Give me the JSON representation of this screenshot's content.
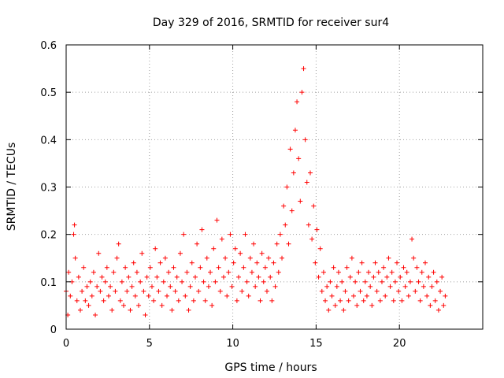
{
  "chart_data": {
    "type": "scatter",
    "title": "Day 329 of 2016, SRMTID for receiver sur4",
    "xlabel": "GPS time / hours",
    "ylabel": "SRMTID / TECUs",
    "xlim": [
      0,
      25
    ],
    "ylim": [
      0,
      0.6
    ],
    "xticks": [
      0,
      5,
      10,
      15,
      20
    ],
    "yticks": [
      0,
      0.1,
      0.2,
      0.3,
      0.4,
      0.5,
      0.6
    ],
    "xtick_labels": [
      "0",
      "5",
      "10",
      "15",
      "20"
    ],
    "ytick_labels": [
      "0",
      "0.1",
      "0.2",
      "0.3",
      "0.4",
      "0.5",
      "0.6"
    ],
    "grid": true,
    "marker": "+",
    "color": "#ff0000",
    "series": [
      {
        "name": "SRMTID",
        "points": [
          [
            0.0,
            0.08
          ],
          [
            0.1,
            0.03
          ],
          [
            0.15,
            0.12
          ],
          [
            0.25,
            0.07
          ],
          [
            0.35,
            0.1
          ],
          [
            0.45,
            0.2
          ],
          [
            0.5,
            0.22
          ],
          [
            0.55,
            0.15
          ],
          [
            0.65,
            0.06
          ],
          [
            0.75,
            0.11
          ],
          [
            0.85,
            0.04
          ],
          [
            0.95,
            0.08
          ],
          [
            1.05,
            0.13
          ],
          [
            1.15,
            0.06
          ],
          [
            1.25,
            0.09
          ],
          [
            1.35,
            0.05
          ],
          [
            1.45,
            0.1
          ],
          [
            1.55,
            0.07
          ],
          [
            1.65,
            0.12
          ],
          [
            1.75,
            0.03
          ],
          [
            1.85,
            0.09
          ],
          [
            1.95,
            0.16
          ],
          [
            2.05,
            0.08
          ],
          [
            2.15,
            0.11
          ],
          [
            2.25,
            0.06
          ],
          [
            2.35,
            0.1
          ],
          [
            2.45,
            0.13
          ],
          [
            2.55,
            0.07
          ],
          [
            2.65,
            0.09
          ],
          [
            2.75,
            0.04
          ],
          [
            2.85,
            0.12
          ],
          [
            2.95,
            0.08
          ],
          [
            3.05,
            0.15
          ],
          [
            3.15,
            0.18
          ],
          [
            3.25,
            0.06
          ],
          [
            3.35,
            0.1
          ],
          [
            3.45,
            0.05
          ],
          [
            3.55,
            0.13
          ],
          [
            3.65,
            0.08
          ],
          [
            3.75,
            0.11
          ],
          [
            3.85,
            0.04
          ],
          [
            3.95,
            0.09
          ],
          [
            4.05,
            0.14
          ],
          [
            4.15,
            0.07
          ],
          [
            4.25,
            0.12
          ],
          [
            4.35,
            0.05
          ],
          [
            4.45,
            0.1
          ],
          [
            4.55,
            0.16
          ],
          [
            4.65,
            0.08
          ],
          [
            4.75,
            0.03
          ],
          [
            4.85,
            0.11
          ],
          [
            4.95,
            0.07
          ],
          [
            5.05,
            0.13
          ],
          [
            5.15,
            0.09
          ],
          [
            5.25,
            0.06
          ],
          [
            5.35,
            0.17
          ],
          [
            5.45,
            0.11
          ],
          [
            5.55,
            0.08
          ],
          [
            5.65,
            0.14
          ],
          [
            5.75,
            0.05
          ],
          [
            5.85,
            0.1
          ],
          [
            5.95,
            0.15
          ],
          [
            6.05,
            0.07
          ],
          [
            6.15,
            0.12
          ],
          [
            6.25,
            0.09
          ],
          [
            6.35,
            0.04
          ],
          [
            6.45,
            0.13
          ],
          [
            6.55,
            0.08
          ],
          [
            6.65,
            0.11
          ],
          [
            6.75,
            0.06
          ],
          [
            6.85,
            0.16
          ],
          [
            6.95,
            0.1
          ],
          [
            7.05,
            0.2
          ],
          [
            7.15,
            0.07
          ],
          [
            7.25,
            0.12
          ],
          [
            7.35,
            0.04
          ],
          [
            7.45,
            0.09
          ],
          [
            7.55,
            0.14
          ],
          [
            7.65,
            0.06
          ],
          [
            7.75,
            0.11
          ],
          [
            7.85,
            0.18
          ],
          [
            7.95,
            0.08
          ],
          [
            8.05,
            0.13
          ],
          [
            8.15,
            0.21
          ],
          [
            8.25,
            0.1
          ],
          [
            8.35,
            0.06
          ],
          [
            8.45,
            0.15
          ],
          [
            8.55,
            0.09
          ],
          [
            8.65,
            0.12
          ],
          [
            8.75,
            0.05
          ],
          [
            8.85,
            0.17
          ],
          [
            8.95,
            0.1
          ],
          [
            9.05,
            0.23
          ],
          [
            9.15,
            0.13
          ],
          [
            9.25,
            0.08
          ],
          [
            9.35,
            0.19
          ],
          [
            9.45,
            0.11
          ],
          [
            9.55,
            0.15
          ],
          [
            9.65,
            0.07
          ],
          [
            9.75,
            0.12
          ],
          [
            9.85,
            0.2
          ],
          [
            9.95,
            0.09
          ],
          [
            10.05,
            0.14
          ],
          [
            10.15,
            0.17
          ],
          [
            10.25,
            0.06
          ],
          [
            10.35,
            0.11
          ],
          [
            10.45,
            0.16
          ],
          [
            10.55,
            0.08
          ],
          [
            10.65,
            0.13
          ],
          [
            10.75,
            0.2
          ],
          [
            10.85,
            0.1
          ],
          [
            10.95,
            0.07
          ],
          [
            11.05,
            0.15
          ],
          [
            11.15,
            0.12
          ],
          [
            11.25,
            0.18
          ],
          [
            11.35,
            0.09
          ],
          [
            11.45,
            0.14
          ],
          [
            11.55,
            0.11
          ],
          [
            11.65,
            0.06
          ],
          [
            11.75,
            0.16
          ],
          [
            11.85,
            0.1
          ],
          [
            11.95,
            0.13
          ],
          [
            12.05,
            0.08
          ],
          [
            12.15,
            0.15
          ],
          [
            12.25,
            0.11
          ],
          [
            12.35,
            0.06
          ],
          [
            12.45,
            0.14
          ],
          [
            12.55,
            0.09
          ],
          [
            12.65,
            0.18
          ],
          [
            12.75,
            0.12
          ],
          [
            12.85,
            0.2
          ],
          [
            12.95,
            0.15
          ],
          [
            13.05,
            0.26
          ],
          [
            13.15,
            0.22
          ],
          [
            13.25,
            0.3
          ],
          [
            13.35,
            0.18
          ],
          [
            13.45,
            0.38
          ],
          [
            13.55,
            0.25
          ],
          [
            13.65,
            0.33
          ],
          [
            13.75,
            0.42
          ],
          [
            13.85,
            0.48
          ],
          [
            13.95,
            0.36
          ],
          [
            14.05,
            0.27
          ],
          [
            14.15,
            0.5
          ],
          [
            14.25,
            0.55
          ],
          [
            14.35,
            0.4
          ],
          [
            14.45,
            0.31
          ],
          [
            14.55,
            0.22
          ],
          [
            14.65,
            0.33
          ],
          [
            14.75,
            0.19
          ],
          [
            14.85,
            0.26
          ],
          [
            14.95,
            0.14
          ],
          [
            15.05,
            0.21
          ],
          [
            15.15,
            0.11
          ],
          [
            15.25,
            0.17
          ],
          [
            15.35,
            0.08
          ],
          [
            15.45,
            0.12
          ],
          [
            15.55,
            0.06
          ],
          [
            15.65,
            0.09
          ],
          [
            15.75,
            0.04
          ],
          [
            15.85,
            0.1
          ],
          [
            15.95,
            0.07
          ],
          [
            16.05,
            0.13
          ],
          [
            16.15,
            0.05
          ],
          [
            16.25,
            0.09
          ],
          [
            16.35,
            0.12
          ],
          [
            16.45,
            0.06
          ],
          [
            16.55,
            0.1
          ],
          [
            16.65,
            0.04
          ],
          [
            16.75,
            0.08
          ],
          [
            16.85,
            0.13
          ],
          [
            16.95,
            0.06
          ],
          [
            17.05,
            0.11
          ],
          [
            17.15,
            0.15
          ],
          [
            17.25,
            0.07
          ],
          [
            17.35,
            0.1
          ],
          [
            17.45,
            0.05
          ],
          [
            17.55,
            0.12
          ],
          [
            17.65,
            0.08
          ],
          [
            17.75,
            0.14
          ],
          [
            17.85,
            0.06
          ],
          [
            17.95,
            0.1
          ],
          [
            18.05,
            0.07
          ],
          [
            18.15,
            0.12
          ],
          [
            18.25,
            0.09
          ],
          [
            18.35,
            0.05
          ],
          [
            18.45,
            0.11
          ],
          [
            18.55,
            0.14
          ],
          [
            18.65,
            0.08
          ],
          [
            18.75,
            0.12
          ],
          [
            18.85,
            0.06
          ],
          [
            18.95,
            0.1
          ],
          [
            19.05,
            0.13
          ],
          [
            19.15,
            0.07
          ],
          [
            19.25,
            0.11
          ],
          [
            19.35,
            0.15
          ],
          [
            19.45,
            0.09
          ],
          [
            19.55,
            0.12
          ],
          [
            19.65,
            0.06
          ],
          [
            19.75,
            0.1
          ],
          [
            19.85,
            0.14
          ],
          [
            19.95,
            0.08
          ],
          [
            20.05,
            0.11
          ],
          [
            20.15,
            0.06
          ],
          [
            20.25,
            0.13
          ],
          [
            20.35,
            0.09
          ],
          [
            20.45,
            0.12
          ],
          [
            20.55,
            0.07
          ],
          [
            20.65,
            0.1
          ],
          [
            20.75,
            0.19
          ],
          [
            20.85,
            0.15
          ],
          [
            20.95,
            0.08
          ],
          [
            21.05,
            0.13
          ],
          [
            21.15,
            0.1
          ],
          [
            21.25,
            0.06
          ],
          [
            21.35,
            0.12
          ],
          [
            21.45,
            0.09
          ],
          [
            21.55,
            0.14
          ],
          [
            21.65,
            0.07
          ],
          [
            21.75,
            0.11
          ],
          [
            21.85,
            0.05
          ],
          [
            21.95,
            0.09
          ],
          [
            22.05,
            0.12
          ],
          [
            22.15,
            0.06
          ],
          [
            22.25,
            0.1
          ],
          [
            22.35,
            0.04
          ],
          [
            22.45,
            0.08
          ],
          [
            22.55,
            0.11
          ],
          [
            22.65,
            0.05
          ],
          [
            22.75,
            0.07
          ]
        ]
      }
    ]
  }
}
